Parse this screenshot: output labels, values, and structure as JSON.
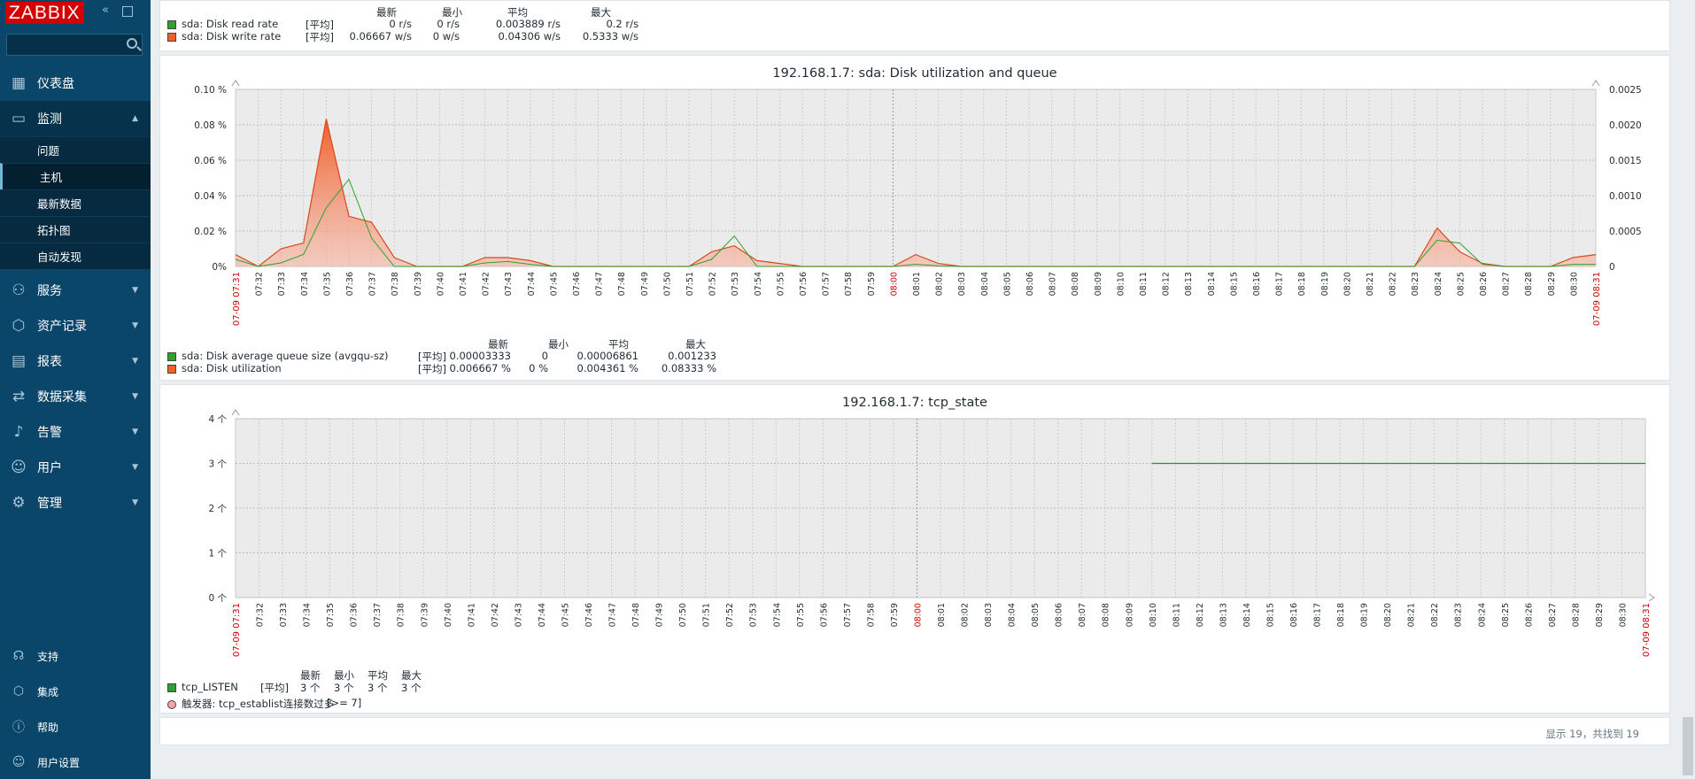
{
  "app": {
    "logo": "ZABBIX"
  },
  "sidebar": {
    "menu": [
      {
        "label": "仪表盘",
        "icon": "dashboard-icon"
      },
      {
        "label": "监测",
        "icon": "monitoring-icon"
      },
      {
        "label": "服务",
        "icon": "services-icon"
      },
      {
        "label": "资产记录",
        "icon": "inventory-icon"
      },
      {
        "label": "报表",
        "icon": "reports-icon"
      },
      {
        "label": "数据采集",
        "icon": "data-collection-icon"
      },
      {
        "label": "告警",
        "icon": "alerts-icon"
      },
      {
        "label": "用户",
        "icon": "users-icon"
      },
      {
        "label": "管理",
        "icon": "administration-icon"
      }
    ],
    "submenu": [
      "问题",
      "主机",
      "最新数据",
      "拓扑图",
      "自动发现"
    ],
    "bottom": [
      {
        "label": "支持",
        "icon": "support-icon"
      },
      {
        "label": "集成",
        "icon": "integrations-icon"
      },
      {
        "label": "帮助",
        "icon": "help-icon"
      },
      {
        "label": "用户设置",
        "icon": "user-settings-icon"
      }
    ]
  },
  "graph0": {
    "headers": [
      "最新",
      "最小",
      "平均",
      "最大"
    ],
    "rows": [
      {
        "name": "sda: Disk read rate",
        "color": "#2ea12e",
        "agg": "[平均]",
        "last": "0 r/s",
        "min": "0 r/s",
        "avg": "0.003889 r/s",
        "max": "0.2 r/s"
      },
      {
        "name": "sda: Disk write rate",
        "color": "#f0602b",
        "agg": "[平均]",
        "last": "0.06667 w/s",
        "min": "0 w/s",
        "avg": "0.04306 w/s",
        "max": "0.5333 w/s"
      }
    ]
  },
  "graph1": {
    "title": "192.168.1.7: sda: Disk utilization and queue",
    "headers": [
      "最新",
      "最小",
      "平均",
      "最大"
    ],
    "rows": [
      {
        "name": "sda: Disk average queue size (avgqu-sz)",
        "color": "#2ea12e",
        "agg": "[平均]",
        "last": "0.00003333",
        "min": "0",
        "avg": "0.00006861",
        "max": "0.001233"
      },
      {
        "name": "sda: Disk utilization",
        "color": "#f0602b",
        "agg": "[平均]",
        "last": "0.006667 %",
        "min": "0 %",
        "avg": "0.004361 %",
        "max": "0.08333 %"
      }
    ],
    "yleft": [
      "0.10 %",
      "0.08 %",
      "0.06 %",
      "0.04 %",
      "0.02 %",
      "0%"
    ],
    "yright": [
      "0.0025",
      "0.0020",
      "0.0015",
      "0.0010",
      "0.0005",
      "0"
    ],
    "date_start": "07-09 07:31",
    "date_end": "07-09 08:31",
    "mid_label": "08:00"
  },
  "graph2": {
    "title": "192.168.1.7: tcp_state",
    "headers": [
      "最新",
      "最小",
      "平均",
      "最大"
    ],
    "rows": [
      {
        "name": "tcp_LISTEN",
        "color": "#2ea12e",
        "agg": "[平均]",
        "last": "3 个",
        "min": "3 个",
        "avg": "3 个",
        "max": "3 个"
      }
    ],
    "trigger": {
      "label": "触发器: tcp_establist连接数过多",
      "value": "[>= 7]",
      "color": "#f4a6a6"
    },
    "yleft": [
      "4 个",
      "3 个",
      "2 个",
      "1 个",
      "0 个"
    ],
    "date_start": "07-09 07:31",
    "date_end": "07-09 08:31",
    "mid_label": "08:00"
  },
  "footer": {
    "text": "显示 19，共找到 19"
  },
  "chart_data": [
    {
      "type": "area",
      "title": "192.168.1.7: sda: Disk utilization and queue",
      "x": [
        "07:31",
        "07:32",
        "07:33",
        "07:34",
        "07:35",
        "07:36",
        "07:37",
        "07:38",
        "07:39",
        "07:40",
        "07:41",
        "07:42",
        "07:43",
        "07:44",
        "07:45",
        "07:46",
        "07:47",
        "07:48",
        "07:49",
        "07:50",
        "07:51",
        "07:52",
        "07:53",
        "07:54",
        "07:55",
        "07:56",
        "07:57",
        "07:58",
        "07:59",
        "08:00",
        "08:01",
        "08:02",
        "08:03",
        "08:04",
        "08:05",
        "08:06",
        "08:07",
        "08:08",
        "08:09",
        "08:10",
        "08:11",
        "08:12",
        "08:13",
        "08:14",
        "08:15",
        "08:16",
        "08:17",
        "08:18",
        "08:19",
        "08:20",
        "08:21",
        "08:22",
        "08:23",
        "08:24",
        "08:25",
        "08:26",
        "08:27",
        "08:28",
        "08:29",
        "08:30",
        "08:31"
      ],
      "series": [
        {
          "name": "sda: Disk utilization",
          "axis": "left",
          "unit": "%",
          "values": [
            0.0067,
            0,
            0.01,
            0.0133,
            0.0833,
            0.0283,
            0.025,
            0.005,
            0,
            0,
            0,
            0.005,
            0.005,
            0.0033,
            0,
            0,
            0,
            0,
            0,
            0,
            0,
            0.0083,
            0.0117,
            0.0033,
            0.0017,
            0,
            0,
            0,
            0,
            0,
            0.0067,
            0.0017,
            0,
            0,
            0,
            0,
            0,
            0,
            0,
            0,
            0,
            0,
            0,
            0,
            0,
            0,
            0,
            0,
            0,
            0,
            0,
            0,
            0,
            0.0217,
            0.0083,
            0.0017,
            0,
            0,
            0,
            0.005,
            0.0067
          ]
        },
        {
          "name": "sda: Disk average queue size (avgqu-sz)",
          "axis": "right",
          "values": [
            0.0001,
            0,
            5e-05,
            0.00017,
            0.00083,
            0.00123,
            0.0004,
            0,
            0,
            0,
            0,
            5e-05,
            7e-05,
            3e-05,
            0,
            0,
            0,
            0,
            0,
            0,
            0,
            0.0001,
            0.00043,
            0,
            0,
            0,
            0,
            0,
            0,
            0,
            3e-05,
            1e-05,
            0,
            0,
            0,
            0,
            0,
            0,
            0,
            0,
            0,
            0,
            0,
            0,
            0,
            0,
            0,
            0,
            0,
            0,
            0,
            0,
            0,
            0.00037,
            0.00033,
            3e-05,
            0,
            0,
            0,
            3e-05,
            3e-05
          ]
        }
      ],
      "ylim_left": [
        0,
        0.1
      ],
      "ylim_right": [
        0,
        0.0025
      ]
    },
    {
      "type": "line",
      "title": "192.168.1.7: tcp_state",
      "series": [
        {
          "name": "tcp_LISTEN",
          "start": "08:10",
          "end": "08:31",
          "value": 3
        }
      ],
      "ylim": [
        0,
        4
      ]
    }
  ]
}
